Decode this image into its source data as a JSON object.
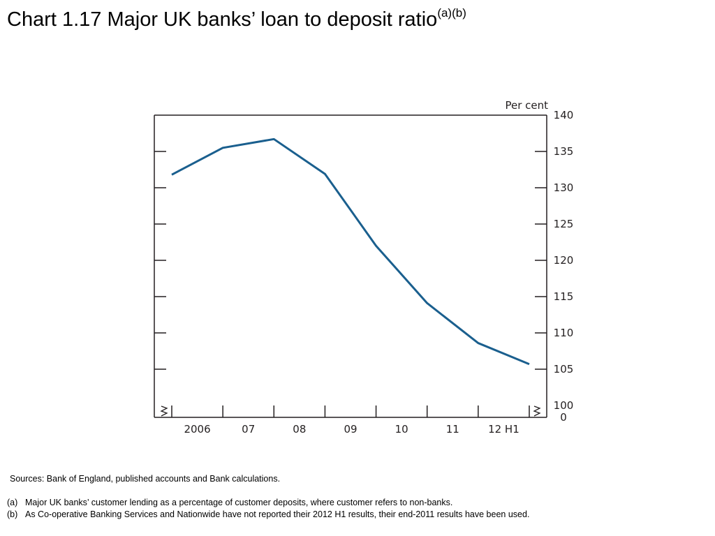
{
  "title": {
    "text": "Chart 1.17  Major UK banks’ loan to deposit ratio",
    "superscript": "(a)(b)"
  },
  "sources": "Sources:  Bank of England, published accounts and Bank calculations.",
  "notes": [
    {
      "marker": "(a)",
      "text": "Major UK banks’ customer lending as a percentage of customer deposits, where customer refers to non-banks."
    },
    {
      "marker": "(b)",
      "text": "As Co-operative Banking Services and Nationwide have not reported their 2012 H1 results, their end-2011 results have been used."
    }
  ],
  "chart_data": {
    "type": "line",
    "title": "Major UK banks’ loan to deposit ratio",
    "unit_label": "Per cent",
    "x_categories": [
      "2006",
      "07",
      "08",
      "09",
      "10",
      "11",
      "12 H1"
    ],
    "y_ticks": [
      "140",
      "135",
      "130",
      "125",
      "120",
      "115",
      "110",
      "105",
      "100",
      "0"
    ],
    "ylim": [
      100,
      140
    ],
    "y_axis_broken": true,
    "y_axis_side": "right",
    "line_color": "#1a5f8e",
    "series": [
      {
        "x": [
          "2006 start",
          "2006 end",
          "2007 end",
          "2008 end",
          "2009 end",
          "2010 end",
          "2011 end",
          "2012 H1"
        ],
        "values": [
          131.8,
          135.5,
          136.7,
          131.9,
          122.0,
          114.1,
          108.6,
          105.7
        ]
      }
    ]
  }
}
